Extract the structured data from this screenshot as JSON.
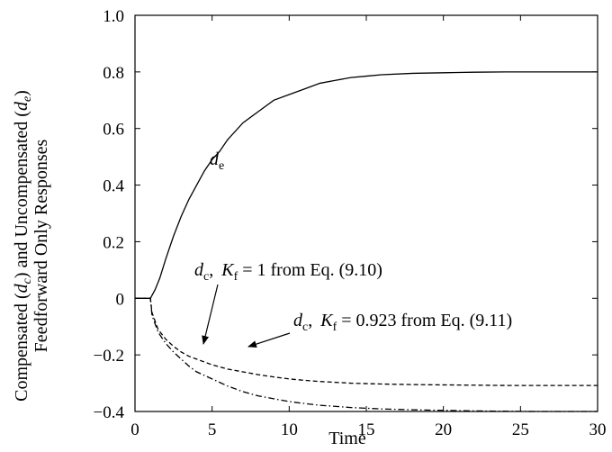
{
  "chart_data": {
    "type": "line",
    "xlabel": "Time",
    "ylabel": {
      "line1_parts": [
        "Compensated (",
        "d",
        "c",
        ") and Uncompensated (",
        "d",
        "e",
        ")"
      ],
      "line2": "Feedforward Only Responses"
    },
    "xlim": [
      0,
      30
    ],
    "ylim": [
      -0.4,
      1.0
    ],
    "x_ticks": [
      "0",
      "5",
      "10",
      "15",
      "20",
      "25",
      "30"
    ],
    "y_ticks": [
      "1.0",
      "0.8",
      "0.6",
      "0.4",
      "0.2",
      "0",
      "-0.2",
      "-0.4"
    ],
    "grid": false,
    "series": [
      {
        "name": "de",
        "style": "solid",
        "color": "#000000",
        "x": [
          0,
          0.5,
          1.0,
          1.3,
          1.6,
          2.0,
          2.5,
          3.0,
          3.5,
          4.0,
          4.5,
          5.0,
          5.5,
          6.0,
          7.0,
          8.0,
          9.0,
          10.0,
          11.0,
          12.0,
          13.0,
          14.0,
          15.0,
          16.0,
          18.0,
          20.0,
          22.0,
          24.0,
          26.0,
          28.0,
          30.0
        ],
        "y": [
          0,
          0,
          0,
          0.03,
          0.07,
          0.14,
          0.22,
          0.29,
          0.35,
          0.4,
          0.45,
          0.49,
          0.52,
          0.56,
          0.62,
          0.66,
          0.7,
          0.72,
          0.74,
          0.76,
          0.77,
          0.78,
          0.785,
          0.79,
          0.795,
          0.797,
          0.799,
          0.8,
          0.8,
          0.8,
          0.8
        ]
      },
      {
        "name": "dc, Kf = 1",
        "style": "dash-dot",
        "color": "#000000",
        "x": [
          0,
          0.5,
          1.0,
          1.1,
          1.5,
          2.0,
          2.5,
          3.0,
          3.5,
          4.0,
          5.0,
          6.0,
          7.0,
          8.0,
          9.0,
          10.0,
          11.0,
          12.0,
          14.0,
          16.0,
          18.0,
          20.0,
          22.0,
          24.0,
          26.0,
          28.0,
          30.0
        ],
        "y": [
          0,
          0,
          0,
          -0.06,
          -0.12,
          -0.16,
          -0.19,
          -0.215,
          -0.24,
          -0.26,
          -0.285,
          -0.31,
          -0.33,
          -0.345,
          -0.355,
          -0.365,
          -0.372,
          -0.378,
          -0.386,
          -0.391,
          -0.394,
          -0.396,
          -0.398,
          -0.399,
          -0.4,
          -0.4,
          -0.4
        ]
      },
      {
        "name": "dc, Kf = 0.923",
        "style": "dashed",
        "color": "#000000",
        "x": [
          0,
          0.5,
          1.0,
          1.1,
          1.5,
          2.0,
          2.5,
          3.0,
          3.5,
          4.0,
          5.0,
          6.0,
          7.0,
          8.0,
          9.0,
          10.0,
          11.0,
          12.0,
          14.0,
          16.0,
          18.0,
          20.0,
          22.0,
          24.0,
          26.0,
          28.0,
          30.0
        ],
        "y": [
          0,
          0,
          0,
          -0.05,
          -0.11,
          -0.145,
          -0.17,
          -0.19,
          -0.205,
          -0.215,
          -0.235,
          -0.25,
          -0.26,
          -0.27,
          -0.278,
          -0.285,
          -0.29,
          -0.294,
          -0.3,
          -0.303,
          -0.305,
          -0.306,
          -0.307,
          -0.308,
          -0.308,
          -0.308,
          -0.308
        ]
      }
    ],
    "annotations": [
      {
        "id": "de",
        "var": "d",
        "sub": "e",
        "rest": ""
      },
      {
        "id": "dc1",
        "var": "d",
        "sub": "c",
        "sep": ", ",
        "var2": "K",
        "sub2": "f",
        "rest": " = 1 from Eq. (9.10)"
      },
      {
        "id": "dc2",
        "var": "d",
        "sub": "c",
        "sep": ", ",
        "var2": "K",
        "sub2": "f",
        "rest": " = 0.923 from Eq. (9.11)"
      }
    ]
  }
}
